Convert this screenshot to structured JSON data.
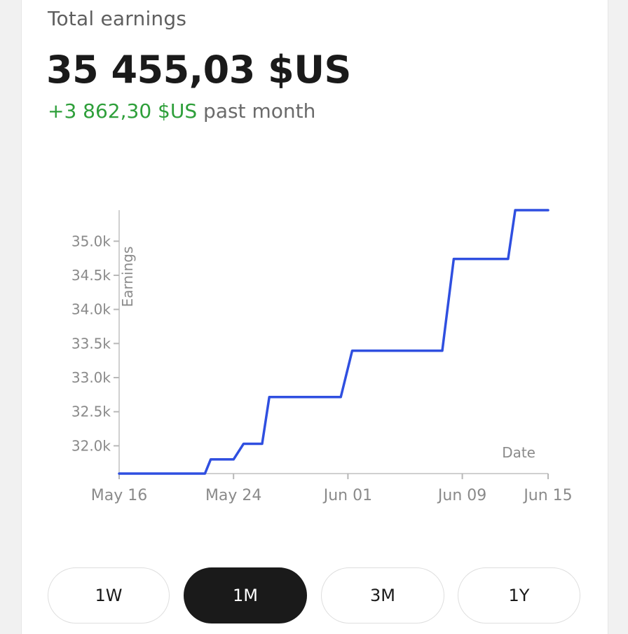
{
  "header": {
    "title": "Total earnings",
    "total": "35 455,03 $US",
    "change_value": "+3 862,30 $US",
    "change_suffix": " past month"
  },
  "colors": {
    "line": "#2f4fe0",
    "positive": "#2e9f3a",
    "active_button": "#1a1a1a"
  },
  "ranges": {
    "selected": "1M",
    "buttons": [
      "1W",
      "1M",
      "3M",
      "1Y"
    ]
  },
  "chart_data": {
    "type": "line",
    "xlabel": "Date",
    "ylabel": "Earnings",
    "x_ticks": [
      "May 16",
      "May 24",
      "Jun 01",
      "Jun 09",
      "Jun 15"
    ],
    "y_ticks": [
      "32.0k",
      "32.5k",
      "33.0k",
      "33.5k",
      "34.0k",
      "34.5k",
      "35.0k"
    ],
    "xlim": [
      "2024-05-16",
      "2024-06-15"
    ],
    "ylim": [
      31593,
      35455
    ],
    "grid": false,
    "series": [
      {
        "x": [
          "2024-05-16",
          "2024-05-22",
          "2024-05-22.4",
          "2024-05-23",
          "2024-05-24",
          "2024-05-24.7",
          "2024-05-26",
          "2024-05-26.5",
          "2024-05-27.1",
          "2024-05-31.5",
          "2024-06-01.3",
          "2024-06-07.6",
          "2024-06-08.4",
          "2024-06-12.2",
          "2024-06-12.7",
          "2024-06-13.5",
          "2024-06-15"
        ],
        "y": [
          31593,
          31593,
          31800,
          31800,
          31800,
          32030,
          32030,
          32715,
          32715,
          32715,
          33395,
          33395,
          34740,
          34740,
          35455,
          35455,
          35455
        ]
      }
    ]
  }
}
